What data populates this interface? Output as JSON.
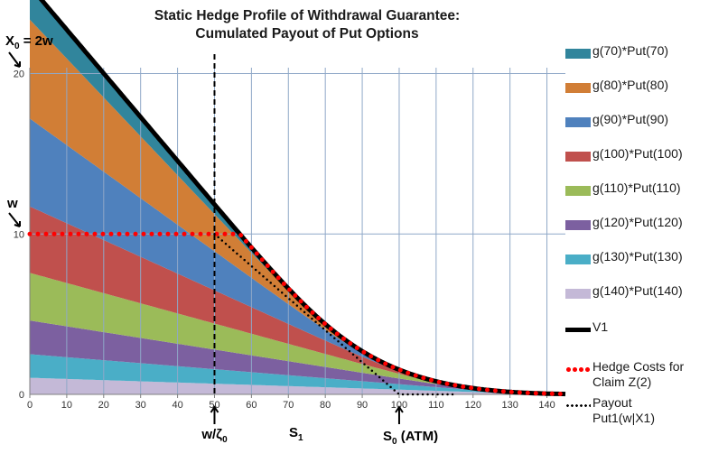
{
  "chart_data": {
    "type": "area",
    "title_line1": "Static Hedge Profile of Withdrawal Guarantee:",
    "title_line2": "Cumulated Payout of Put Options",
    "xlabel": "S1",
    "xlim": [
      0,
      145
    ],
    "ylim": [
      0,
      20.5
    ],
    "x_ticks": [
      0,
      10,
      20,
      30,
      40,
      50,
      60,
      70,
      80,
      90,
      100,
      110,
      120,
      130,
      140
    ],
    "y_ticks": [
      0,
      10,
      20
    ],
    "grid": "vertical and horizontal major lines",
    "legend_position": "right",
    "strikes": [
      140,
      130,
      120,
      110,
      100,
      90,
      80,
      70
    ],
    "series": [
      {
        "name": "g(140)*Put(140)",
        "color": "#c4b9d7",
        "weights": 0.0074
      },
      {
        "name": "g(130)*Put(130)",
        "color": "#4aaec7",
        "weights": 0.0113
      },
      {
        "name": "g(120)*Put(120)",
        "color": "#7c60a0",
        "weights": 0.0175
      },
      {
        "name": "g(110)*Put(110)",
        "color": "#9bbb59",
        "weights": 0.027
      },
      {
        "name": "g(100)*Put(100)",
        "color": "#c0504d",
        "weights": 0.0414
      },
      {
        "name": "g(90)*Put(90)",
        "color": "#4f81bd",
        "weights": 0.0609
      },
      {
        "name": "g(80)*Put(80)",
        "color": "#d17e36",
        "weights": 0.0771
      },
      {
        "name": "g(70)*Put(70)",
        "color": "#31859c",
        "weights": 0.03
      }
    ],
    "weights": [
      0.0074,
      0.0113,
      0.0175,
      0.027,
      0.0414,
      0.0609,
      0.0771,
      0.03
    ],
    "legend_order": [
      "g(70)*Put(70)",
      "g(80)*Put(80)",
      "g(90)*Put(90)",
      "g(100)*Put(100)",
      "g(110)*Put(110)",
      "g(120)*Put(120)",
      "g(130)*Put(130)",
      "g(140)*Put(140)",
      "V1",
      "Hedge Costs for Claim Z(2)",
      "Payout Put1(w|X1)"
    ],
    "lines": [
      {
        "name": "V1",
        "style": "solid-black"
      },
      {
        "name": "Hedge Costs for Claim Z(2)",
        "line1": "Hedge Costs for",
        "line2": "Claim Z(2)",
        "style": "dotted-red",
        "cap": 10
      },
      {
        "name": "Payout Put1(w|X1)",
        "line1": "Payout",
        "line2": "Put1(w|X1)",
        "style": "dotted-black",
        "strike": 100,
        "ratio": 0.2
      }
    ],
    "annotations": {
      "x0_label": "X",
      "x0_sub": "0",
      "x0_rest": " = 2w",
      "w_label": "w",
      "w_over_zeta": "w/ζ",
      "w_over_zeta_sub": "0",
      "w_over_zeta_x": 50,
      "s0_label": "S",
      "s0_sub": "0",
      "s0_rest": " (ATM)",
      "s0_x": 100,
      "s1_label": "S",
      "s1_sub": "1"
    }
  }
}
